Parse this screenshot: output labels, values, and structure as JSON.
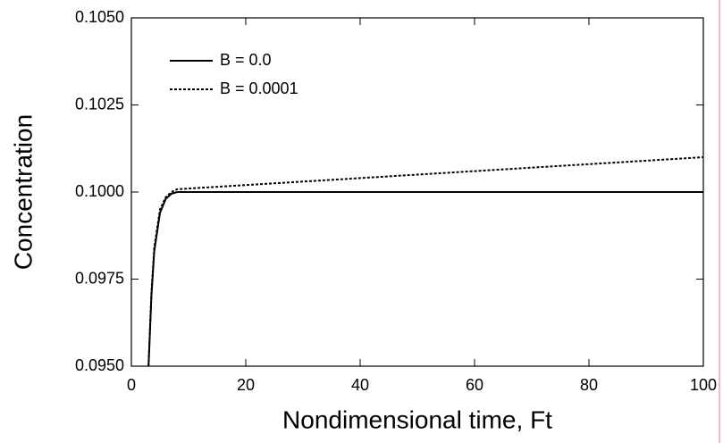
{
  "chart_data": {
    "type": "line",
    "xlabel": "Nondimensional time, Ft",
    "ylabel": "Concentration",
    "xlim": [
      0,
      100
    ],
    "xticks": [
      0,
      20,
      40,
      60,
      80,
      100
    ],
    "ylim": [
      0.095,
      0.105
    ],
    "yticks": [
      {
        "value": 0.095,
        "label": "0.0950"
      },
      {
        "value": 0.0975,
        "label": "0.0975"
      },
      {
        "value": 0.1,
        "label": "0.1000"
      },
      {
        "value": 0.1025,
        "label": "0.1025"
      },
      {
        "value": 0.105,
        "label": "0.1050"
      }
    ],
    "legend": "upper left",
    "series": [
      {
        "name": "B = 0.0",
        "color": "#000000",
        "linestyle": "solid",
        "x": [
          3,
          3.5,
          4,
          5,
          6,
          7,
          8,
          10,
          100
        ],
        "values": [
          0.095,
          0.097,
          0.0983,
          0.0994,
          0.0998,
          0.09995,
          0.1,
          0.1,
          0.1
        ]
      },
      {
        "name": "B = 0.0001",
        "color": "#000000",
        "linestyle": "dotted",
        "x": [
          3,
          3.5,
          4,
          5,
          6,
          7,
          8,
          10,
          20,
          40,
          60,
          80,
          100
        ],
        "values": [
          0.095,
          0.0971,
          0.0984,
          0.0995,
          0.09985,
          0.1,
          0.10008,
          0.1001,
          0.1002,
          0.1004,
          0.1006,
          0.1008,
          0.101
        ]
      }
    ]
  }
}
